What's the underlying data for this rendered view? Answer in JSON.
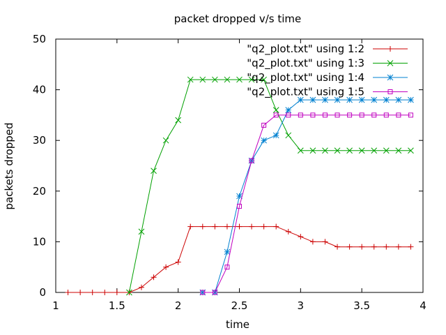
{
  "chart_data": {
    "type": "line",
    "title": "packet dropped v/s time",
    "xlabel": "time",
    "ylabel": "packets dropped",
    "xlim": [
      1,
      4
    ],
    "ylim": [
      0,
      50
    ],
    "xticks": [
      1,
      1.5,
      2,
      2.5,
      3,
      3.5,
      4
    ],
    "xtick_labels": [
      "1",
      "1.5",
      "2",
      "2.5",
      "3",
      "3.5",
      "4"
    ],
    "yticks": [
      0,
      10,
      20,
      30,
      40,
      50
    ],
    "ytick_labels": [
      "0",
      "10",
      "20",
      "30",
      "40",
      "50"
    ],
    "grid": false,
    "legend_position": "top-right",
    "series": [
      {
        "name": "\"q2_plot.txt\" using 1:2",
        "color": "#cc0000",
        "marker": "plus",
        "x": [
          1.1,
          1.2,
          1.3,
          1.4,
          1.5,
          1.6,
          1.7,
          1.8,
          1.9,
          2.0,
          2.1,
          2.2,
          2.3,
          2.4,
          2.5,
          2.6,
          2.7,
          2.8,
          2.9,
          3.0,
          3.1,
          3.2,
          3.3,
          3.4,
          3.5,
          3.6,
          3.7,
          3.8,
          3.9
        ],
        "values": [
          0,
          0,
          0,
          0,
          0,
          0,
          1,
          3,
          5,
          6,
          13,
          13,
          13,
          13,
          13,
          13,
          13,
          13,
          12,
          11,
          10,
          10,
          9,
          9,
          9,
          9,
          9,
          9,
          9
        ]
      },
      {
        "name": "\"q2_plot.txt\" using 1:3",
        "color": "#00a000",
        "marker": "cross",
        "x": [
          1.6,
          1.7,
          1.8,
          1.9,
          2.0,
          2.1,
          2.2,
          2.3,
          2.4,
          2.5,
          2.6,
          2.7,
          2.8,
          2.9,
          3.0,
          3.1,
          3.2,
          3.3,
          3.4,
          3.5,
          3.6,
          3.7,
          3.8,
          3.9
        ],
        "values": [
          0,
          12,
          24,
          30,
          34,
          42,
          42,
          42,
          42,
          42,
          42,
          42,
          36,
          31,
          28,
          28,
          28,
          28,
          28,
          28,
          28,
          28,
          28,
          28
        ]
      },
      {
        "name": "\"q2_plot.txt\" using 1:4",
        "color": "#0080d0",
        "marker": "star",
        "x": [
          2.2,
          2.3,
          2.4,
          2.5,
          2.6,
          2.7,
          2.8,
          2.9,
          3.0,
          3.1,
          3.2,
          3.3,
          3.4,
          3.5,
          3.6,
          3.7,
          3.8,
          3.9
        ],
        "values": [
          0,
          0,
          8,
          19,
          26,
          30,
          31,
          36,
          38,
          38,
          38,
          38,
          38,
          38,
          38,
          38,
          38,
          38
        ]
      },
      {
        "name": "\"q2_plot.txt\" using 1:5",
        "color": "#c000c0",
        "marker": "square",
        "x": [
          2.2,
          2.3,
          2.4,
          2.5,
          2.6,
          2.7,
          2.8,
          2.9,
          3.0,
          3.1,
          3.2,
          3.3,
          3.4,
          3.5,
          3.6,
          3.7,
          3.8,
          3.9
        ],
        "values": [
          0,
          0,
          5,
          17,
          26,
          33,
          35,
          35,
          35,
          35,
          35,
          35,
          35,
          35,
          35,
          35,
          35,
          35
        ]
      }
    ]
  }
}
